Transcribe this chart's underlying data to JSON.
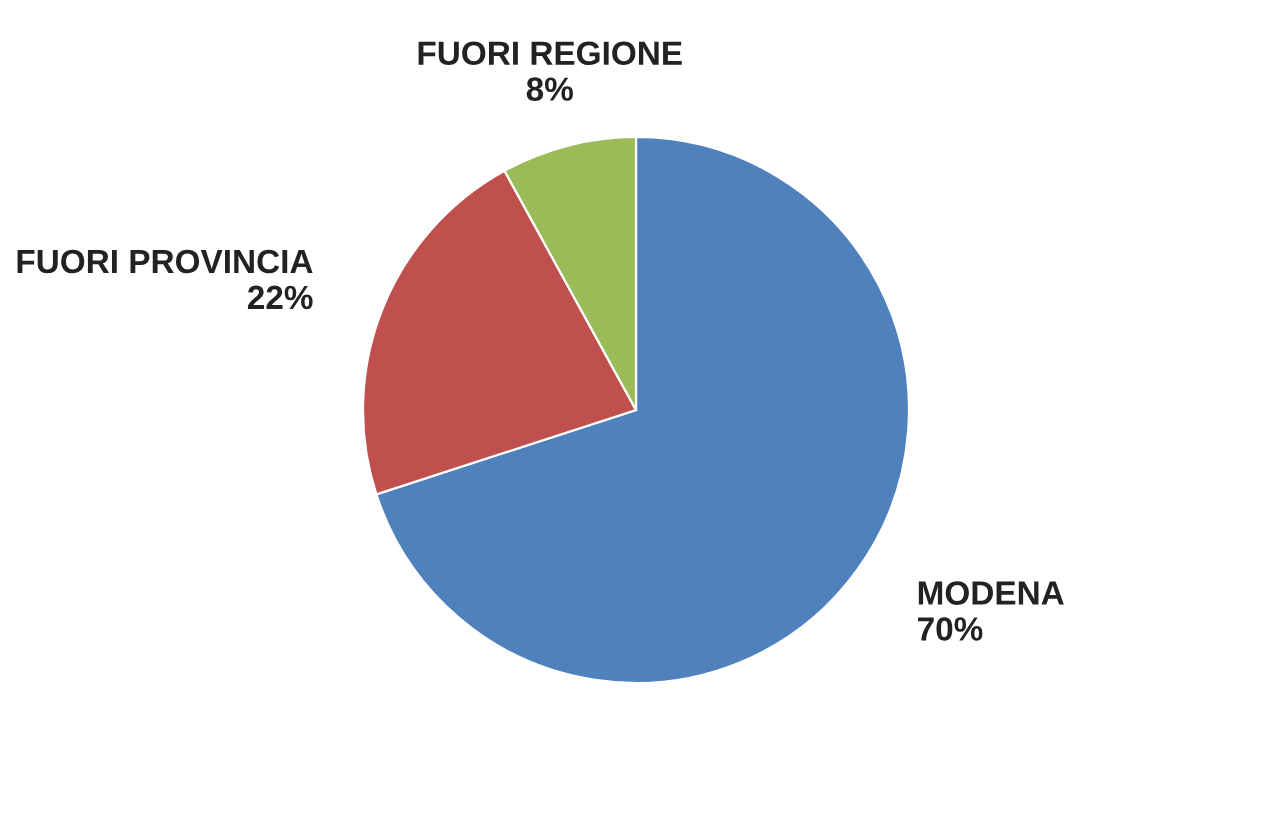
{
  "chart_data": {
    "type": "pie",
    "categories": [
      "MODENA",
      "FUORI PROVINCIA",
      "FUORI REGIONE"
    ],
    "values": [
      70,
      22,
      8
    ],
    "value_labels": [
      "70%",
      "22%",
      "8%"
    ],
    "colors": [
      "#4f81bd",
      "#c0504d",
      "#9bbb59"
    ],
    "legend": false
  }
}
